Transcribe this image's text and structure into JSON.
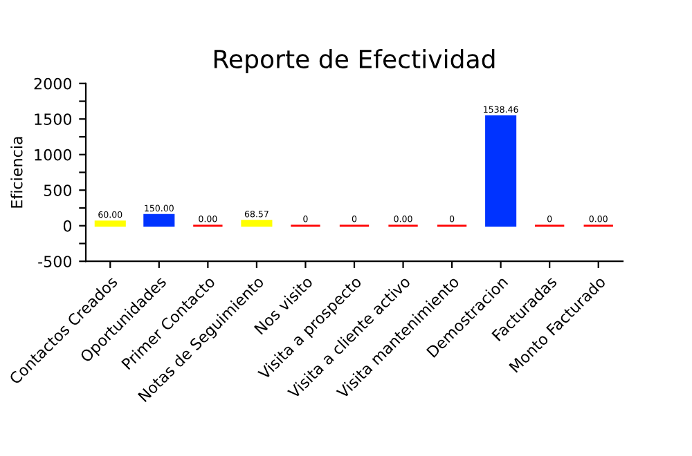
{
  "chart_data": {
    "type": "bar",
    "title": "Reporte de Efectividad",
    "ylabel": "Eficiencia",
    "categories": [
      "Contactos Creados",
      "Oportunidades",
      "Primer Contacto",
      "Notas de Seguimiento",
      "Nos visito",
      "Visita a prospecto",
      "Visita a cliente activo",
      "Visita mantenimiento",
      "Demostracion",
      "Facturadas",
      "Monto Facturado"
    ],
    "values": [
      60,
      150,
      0,
      68.57,
      0,
      0,
      0,
      0,
      1538.46,
      0,
      0
    ],
    "colors": [
      "#ffff00",
      "#0033ff",
      "#ff0000",
      "#ffff00",
      "#ff0000",
      "#ff0000",
      "#ff0000",
      "#ff0000",
      "#0033ff",
      "#ff0000",
      "#ff0000"
    ],
    "value_labels": [
      "60.00",
      "150.00",
      "0.00",
      "68.57",
      "0",
      "0",
      "0.00",
      "0",
      "1538.46",
      "0",
      "0.00"
    ],
    "ylim": [
      -500,
      2000
    ],
    "yticks": [
      -500,
      {
        "value": -250,
        "label": null
      },
      0,
      {
        "value": 250,
        "label": null
      },
      500,
      {
        "value": 750,
        "label": null
      },
      1000,
      {
        "value": 1250,
        "label": null
      },
      1500,
      {
        "value": 1750,
        "label": null
      },
      2000
    ],
    "grid": false
  }
}
